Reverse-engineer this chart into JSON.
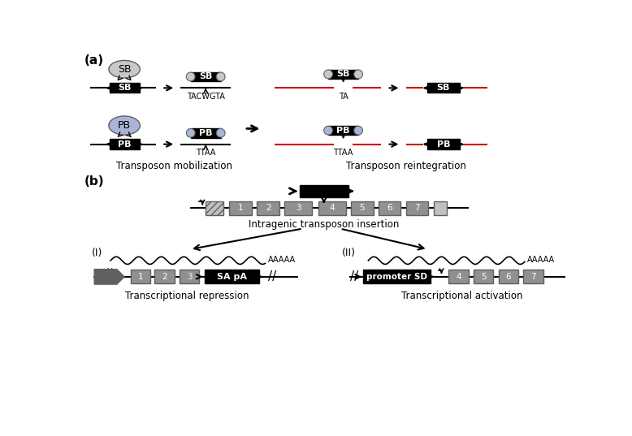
{
  "bg_color": "#ffffff",
  "panel_a_label": "(a)",
  "panel_b_label": "(b)",
  "sb_color": "#c8c8c8",
  "pb_color": "#a8b4d8",
  "black": "#000000",
  "red_line": "#cc0000",
  "gray_box": "#909090",
  "dark_gray": "#606060",
  "light_gray": "#c0c0c0",
  "transposon_mobilization": "Transposon mobilization",
  "transposon_reintegration": "Transposon reintegration",
  "intragenic_label": "Intragenic transposon insertion",
  "repression_label": "Transcriptional repression",
  "activation_label": "Transcriptional activation",
  "tacwgta": "TACWGTA",
  "ttaa": "TTAA",
  "ta": "TA",
  "aaaaa": "AAAAA",
  "sa_pa": "SA pA",
  "promoter_sd": "promoter SD",
  "label_I": "(I)",
  "label_II": "(II)"
}
